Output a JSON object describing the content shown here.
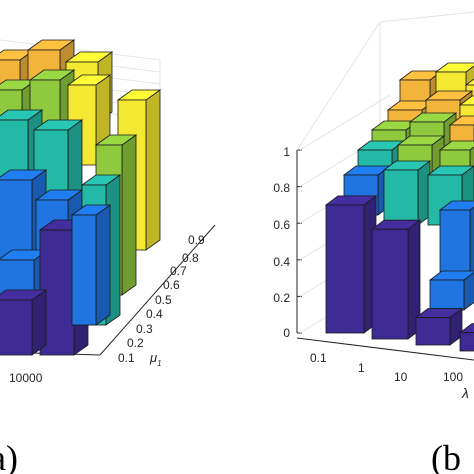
{
  "panels": [
    {
      "label": "(a)",
      "chart_data": {
        "type": "bar3d",
        "x_tick_labels": [
          "10000"
        ],
        "y_tick_labels": [
          "0.1",
          "0.2",
          "0.3",
          "0.4",
          "0.5",
          "0.6",
          "0.7",
          "0.8",
          "0.9"
        ],
        "y_axis_label": "μ",
        "y_axis_label_sub": "1",
        "grid": true
      }
    },
    {
      "label": "(b",
      "chart_data": {
        "type": "bar3d",
        "z_tick_labels": [
          "0",
          "0.2",
          "0.4",
          "0.6",
          "0.8",
          "1"
        ],
        "z_range": [
          0,
          1
        ],
        "x_tick_labels": [
          "0.1",
          "1",
          "10",
          "100"
        ],
        "x_axis_label": "λ",
        "front_row_values": [
          0.7,
          0.6,
          0.15,
          0.1
        ],
        "grid": true
      }
    }
  ],
  "colors": {
    "low": "#3e2a93",
    "mid_blue": "#1f74e0",
    "teal": "#24b8a6",
    "green": "#8fc93e",
    "orange": "#f2b43b",
    "yellow": "#f5e832",
    "edge": "#1a1a1a",
    "grid": "#e4e4e4"
  }
}
